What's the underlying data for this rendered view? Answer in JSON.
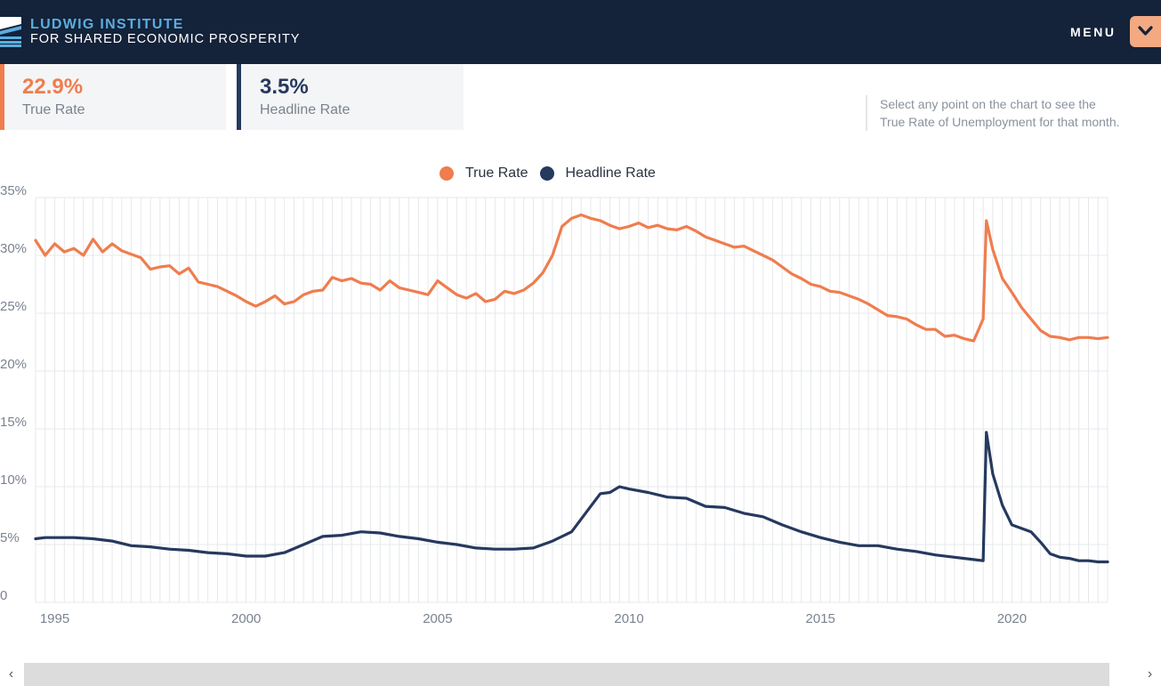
{
  "brand": {
    "line1": "LUDWIG INSTITUTE",
    "line2": "FOR SHARED ECONOMIC PROSPERITY"
  },
  "menu": {
    "label": "MENU",
    "icon": "chevron-down-icon"
  },
  "stats": {
    "true_rate": {
      "value": "22.9%",
      "label": "True Rate"
    },
    "headline_rate": {
      "value": "3.5%",
      "label": "Headline Rate"
    }
  },
  "hint": "Select any point on the chart to see the\nTrue Rate of Unemployment for that month.",
  "colors": {
    "navbar": "#14223a",
    "true_rate": "#ef7d4e",
    "headline_rate": "#26395e",
    "accent": "#f3a982"
  },
  "chart_data": {
    "type": "line",
    "legend": [
      "True Rate",
      "Headline Rate"
    ],
    "legend_position": "top-center",
    "grid": true,
    "y_ticks": [
      "0",
      "5%",
      "10%",
      "15%",
      "20%",
      "25%",
      "30%",
      "35%"
    ],
    "x_ticks": [
      "1995",
      "2000",
      "2005",
      "2010",
      "2015",
      "2020"
    ],
    "ylim": [
      0,
      35
    ],
    "xlim": [
      1994.5,
      2022.5
    ],
    "series": [
      {
        "name": "True Rate",
        "color": "#ef7d4e",
        "points": [
          [
            1994.5,
            31.3
          ],
          [
            1994.75,
            30.0
          ],
          [
            1995.0,
            31.0
          ],
          [
            1995.25,
            30.3
          ],
          [
            1995.5,
            30.6
          ],
          [
            1995.75,
            30.0
          ],
          [
            1996.0,
            31.4
          ],
          [
            1996.25,
            30.3
          ],
          [
            1996.5,
            31.0
          ],
          [
            1996.75,
            30.4
          ],
          [
            1997.0,
            30.1
          ],
          [
            1997.25,
            29.8
          ],
          [
            1997.5,
            28.8
          ],
          [
            1997.75,
            29.0
          ],
          [
            1998.0,
            29.1
          ],
          [
            1998.25,
            28.4
          ],
          [
            1998.5,
            28.9
          ],
          [
            1998.75,
            27.7
          ],
          [
            1999.0,
            27.5
          ],
          [
            1999.25,
            27.3
          ],
          [
            1999.5,
            26.9
          ],
          [
            1999.75,
            26.5
          ],
          [
            2000.0,
            26.0
          ],
          [
            2000.25,
            25.6
          ],
          [
            2000.5,
            26.0
          ],
          [
            2000.75,
            26.5
          ],
          [
            2001.0,
            25.8
          ],
          [
            2001.25,
            26.0
          ],
          [
            2001.5,
            26.6
          ],
          [
            2001.75,
            26.9
          ],
          [
            2002.0,
            27.0
          ],
          [
            2002.25,
            28.1
          ],
          [
            2002.5,
            27.8
          ],
          [
            2002.75,
            28.0
          ],
          [
            2003.0,
            27.6
          ],
          [
            2003.25,
            27.5
          ],
          [
            2003.5,
            27.0
          ],
          [
            2003.75,
            27.8
          ],
          [
            2004.0,
            27.2
          ],
          [
            2004.25,
            27.0
          ],
          [
            2004.5,
            26.8
          ],
          [
            2004.75,
            26.6
          ],
          [
            2005.0,
            27.8
          ],
          [
            2005.25,
            27.2
          ],
          [
            2005.5,
            26.6
          ],
          [
            2005.75,
            26.3
          ],
          [
            2006.0,
            26.7
          ],
          [
            2006.25,
            26.0
          ],
          [
            2006.5,
            26.2
          ],
          [
            2006.75,
            26.9
          ],
          [
            2007.0,
            26.7
          ],
          [
            2007.25,
            27.0
          ],
          [
            2007.5,
            27.6
          ],
          [
            2007.75,
            28.5
          ],
          [
            2008.0,
            30.0
          ],
          [
            2008.25,
            32.5
          ],
          [
            2008.5,
            33.2
          ],
          [
            2008.75,
            33.5
          ],
          [
            2009.0,
            33.2
          ],
          [
            2009.25,
            33.0
          ],
          [
            2009.5,
            32.6
          ],
          [
            2009.75,
            32.3
          ],
          [
            2010.0,
            32.5
          ],
          [
            2010.25,
            32.8
          ],
          [
            2010.5,
            32.4
          ],
          [
            2010.75,
            32.6
          ],
          [
            2011.0,
            32.3
          ],
          [
            2011.25,
            32.2
          ],
          [
            2011.5,
            32.5
          ],
          [
            2011.75,
            32.1
          ],
          [
            2012.0,
            31.6
          ],
          [
            2012.25,
            31.3
          ],
          [
            2012.5,
            31.0
          ],
          [
            2012.75,
            30.7
          ],
          [
            2013.0,
            30.8
          ],
          [
            2013.25,
            30.4
          ],
          [
            2013.5,
            30.0
          ],
          [
            2013.75,
            29.6
          ],
          [
            2014.0,
            29.0
          ],
          [
            2014.25,
            28.4
          ],
          [
            2014.5,
            28.0
          ],
          [
            2014.75,
            27.5
          ],
          [
            2015.0,
            27.3
          ],
          [
            2015.25,
            26.9
          ],
          [
            2015.5,
            26.8
          ],
          [
            2015.75,
            26.5
          ],
          [
            2016.0,
            26.2
          ],
          [
            2016.25,
            25.8
          ],
          [
            2016.5,
            25.3
          ],
          [
            2016.75,
            24.8
          ],
          [
            2017.0,
            24.7
          ],
          [
            2017.25,
            24.5
          ],
          [
            2017.5,
            24.0
          ],
          [
            2017.75,
            23.6
          ],
          [
            2018.0,
            23.6
          ],
          [
            2018.25,
            23.0
          ],
          [
            2018.5,
            23.1
          ],
          [
            2018.75,
            22.8
          ],
          [
            2019.0,
            22.6
          ],
          [
            2019.25,
            24.5
          ],
          [
            2019.333,
            33.0
          ],
          [
            2019.5,
            30.5
          ],
          [
            2019.75,
            28.0
          ],
          [
            2020.0,
            26.8
          ],
          [
            2020.25,
            25.5
          ],
          [
            2020.5,
            24.5
          ],
          [
            2020.75,
            23.5
          ],
          [
            2021.0,
            23.0
          ],
          [
            2021.25,
            22.9
          ],
          [
            2021.5,
            22.7
          ],
          [
            2021.75,
            22.9
          ],
          [
            2022.0,
            22.9
          ],
          [
            2022.25,
            22.8
          ],
          [
            2022.5,
            22.9
          ]
        ]
      },
      {
        "name": "Headline Rate",
        "color": "#26395e",
        "points": [
          [
            1994.5,
            5.5
          ],
          [
            1994.75,
            5.6
          ],
          [
            1995.0,
            5.6
          ],
          [
            1995.5,
            5.6
          ],
          [
            1996.0,
            5.5
          ],
          [
            1996.5,
            5.3
          ],
          [
            1997.0,
            4.9
          ],
          [
            1997.5,
            4.8
          ],
          [
            1998.0,
            4.6
          ],
          [
            1998.5,
            4.5
          ],
          [
            1999.0,
            4.3
          ],
          [
            1999.5,
            4.2
          ],
          [
            2000.0,
            4.0
          ],
          [
            2000.5,
            4.0
          ],
          [
            2001.0,
            4.3
          ],
          [
            2001.5,
            5.0
          ],
          [
            2002.0,
            5.7
          ],
          [
            2002.5,
            5.8
          ],
          [
            2003.0,
            6.1
          ],
          [
            2003.5,
            6.0
          ],
          [
            2004.0,
            5.7
          ],
          [
            2004.5,
            5.5
          ],
          [
            2005.0,
            5.2
          ],
          [
            2005.5,
            5.0
          ],
          [
            2006.0,
            4.7
          ],
          [
            2006.5,
            4.6
          ],
          [
            2007.0,
            4.6
          ],
          [
            2007.5,
            4.7
          ],
          [
            2008.0,
            5.3
          ],
          [
            2008.5,
            6.1
          ],
          [
            2009.0,
            8.3
          ],
          [
            2009.25,
            9.4
          ],
          [
            2009.5,
            9.5
          ],
          [
            2009.75,
            10.0
          ],
          [
            2010.0,
            9.8
          ],
          [
            2010.5,
            9.5
          ],
          [
            2011.0,
            9.1
          ],
          [
            2011.5,
            9.0
          ],
          [
            2012.0,
            8.3
          ],
          [
            2012.5,
            8.2
          ],
          [
            2013.0,
            7.7
          ],
          [
            2013.5,
            7.4
          ],
          [
            2014.0,
            6.7
          ],
          [
            2014.5,
            6.1
          ],
          [
            2015.0,
            5.6
          ],
          [
            2015.5,
            5.2
          ],
          [
            2016.0,
            4.9
          ],
          [
            2016.5,
            4.9
          ],
          [
            2017.0,
            4.6
          ],
          [
            2017.5,
            4.4
          ],
          [
            2018.0,
            4.1
          ],
          [
            2018.5,
            3.9
          ],
          [
            2019.0,
            3.7
          ],
          [
            2019.25,
            3.6
          ],
          [
            2019.333,
            14.7
          ],
          [
            2019.5,
            11.1
          ],
          [
            2019.75,
            8.4
          ],
          [
            2020.0,
            6.7
          ],
          [
            2020.5,
            6.1
          ],
          [
            2020.75,
            5.2
          ],
          [
            2021.0,
            4.2
          ],
          [
            2021.25,
            3.9
          ],
          [
            2021.5,
            3.8
          ],
          [
            2021.75,
            3.6
          ],
          [
            2022.0,
            3.6
          ],
          [
            2022.25,
            3.5
          ],
          [
            2022.5,
            3.5
          ]
        ]
      }
    ]
  },
  "scrollbar": {
    "left_arrow": "‹",
    "right_arrow": "›"
  }
}
